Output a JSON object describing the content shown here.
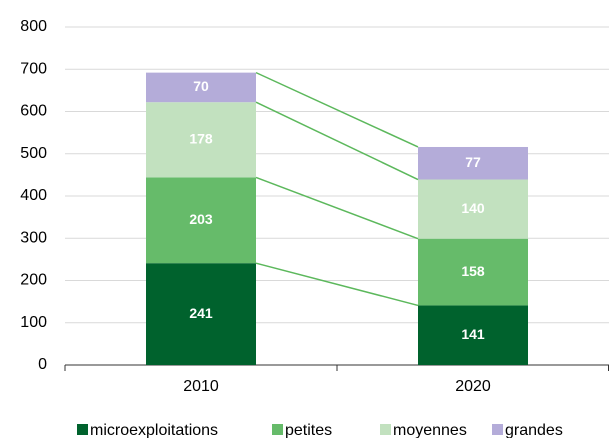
{
  "chart_data": {
    "type": "stacked_bar",
    "categories": [
      "2010",
      "2020"
    ],
    "series": [
      {
        "name": "microexploitations",
        "color": "#00622d",
        "values": [
          241,
          141
        ]
      },
      {
        "name": "petites",
        "color": "#66bb6a",
        "values": [
          203,
          158
        ]
      },
      {
        "name": "moyennes",
        "color": "#c2e1bf",
        "values": [
          178,
          140
        ]
      },
      {
        "name": "grandes",
        "color": "#b4acd9",
        "values": [
          70,
          77
        ]
      }
    ],
    "ylim": [
      0,
      800
    ],
    "yticks": [
      0,
      100,
      200,
      300,
      400,
      500,
      600,
      700,
      800
    ],
    "grid": true,
    "legend": "bottom",
    "connector_color": "#5cb85c"
  }
}
